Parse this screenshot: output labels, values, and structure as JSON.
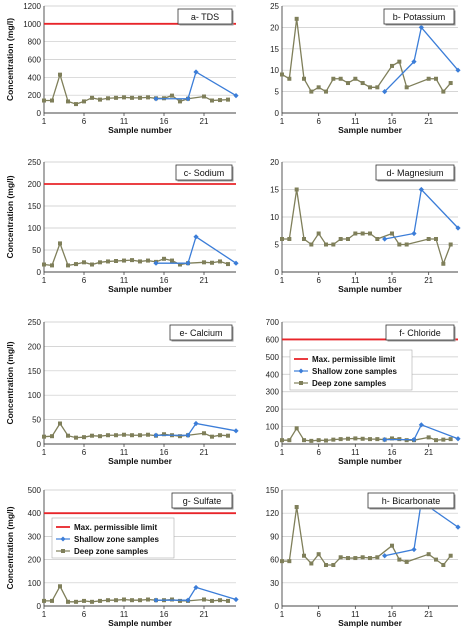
{
  "legend": {
    "limit_label": "Max. permissible limit",
    "shallow_label": "Shallow zone samples",
    "deep_label": "Deep zone samples"
  },
  "colors": {
    "limit": "#e8252a",
    "shallow": "#3b7dd8",
    "deep": "#7f7f5a",
    "grid": "#c8c8c8"
  },
  "chart_data": [
    {
      "type": "line",
      "title": "a- TDS",
      "xlabel": "Sample number",
      "ylabel": "Concentration (mg/l)",
      "ylim": [
        0,
        1200
      ],
      "yticks": [
        0,
        200,
        400,
        600,
        800,
        1000,
        1200
      ],
      "xticks": [
        1,
        6,
        11,
        16,
        21
      ],
      "xlim": [
        1,
        25
      ],
      "limit": 1000,
      "show_legend": false,
      "deep": {
        "x": [
          1,
          2,
          3,
          4,
          5,
          6,
          7,
          8,
          9,
          10,
          11,
          12,
          13,
          14,
          15,
          16,
          17,
          18,
          19,
          21,
          22,
          23,
          24
        ],
        "y": [
          140,
          140,
          430,
          130,
          100,
          130,
          170,
          150,
          165,
          170,
          175,
          170,
          170,
          175,
          165,
          165,
          195,
          130,
          160,
          185,
          140,
          145,
          150
        ]
      },
      "shallow": {
        "x": [
          15,
          19,
          20,
          25
        ],
        "y": [
          160,
          160,
          460,
          195
        ]
      }
    },
    {
      "type": "line",
      "title": "b- Potassium",
      "xlabel": "Sample number",
      "ylabel": "",
      "ylim": [
        0,
        25
      ],
      "yticks": [
        0,
        5,
        10,
        15,
        20,
        25
      ],
      "xticks": [
        1,
        6,
        11,
        16,
        21
      ],
      "xlim": [
        1,
        25
      ],
      "limit": null,
      "show_legend": false,
      "deep": {
        "x": [
          1,
          2,
          3,
          4,
          5,
          6,
          7,
          8,
          9,
          10,
          11,
          12,
          13,
          14,
          16,
          17,
          18,
          21,
          22,
          23,
          24
        ],
        "y": [
          9,
          8,
          22,
          8,
          5,
          6,
          5,
          8,
          8,
          7,
          8,
          7,
          6,
          6,
          11,
          12,
          6,
          8,
          8,
          5,
          7
        ]
      },
      "shallow": {
        "x": [
          15,
          19,
          20,
          25
        ],
        "y": [
          5,
          12,
          20,
          10
        ]
      }
    },
    {
      "type": "line",
      "title": "c- Sodium",
      "xlabel": "Sample number",
      "ylabel": "Concentration (mg/l)",
      "ylim": [
        0,
        250
      ],
      "yticks": [
        0,
        50,
        100,
        150,
        200,
        250
      ],
      "xticks": [
        1,
        6,
        11,
        16,
        21
      ],
      "xlim": [
        1,
        25
      ],
      "limit": 200,
      "show_legend": false,
      "deep": {
        "x": [
          1,
          2,
          3,
          4,
          5,
          6,
          7,
          8,
          9,
          10,
          11,
          12,
          13,
          14,
          15,
          16,
          17,
          18,
          19,
          21,
          22,
          23,
          24
        ],
        "y": [
          17,
          15,
          65,
          15,
          18,
          22,
          17,
          22,
          24,
          25,
          26,
          27,
          24,
          26,
          23,
          30,
          26,
          17,
          20,
          22,
          21,
          24,
          18
        ]
      },
      "shallow": {
        "x": [
          15,
          19,
          20,
          25
        ],
        "y": [
          20,
          20,
          80,
          20
        ]
      }
    },
    {
      "type": "line",
      "title": "d- Magnesium",
      "xlabel": "Sample number",
      "ylabel": "",
      "ylim": [
        0,
        20
      ],
      "yticks": [
        0,
        5,
        10,
        15,
        20
      ],
      "xticks": [
        1,
        6,
        11,
        16,
        21
      ],
      "xlim": [
        1,
        25
      ],
      "limit": null,
      "show_legend": false,
      "deep": {
        "x": [
          1,
          2,
          3,
          4,
          5,
          6,
          7,
          8,
          9,
          10,
          11,
          12,
          13,
          14,
          16,
          17,
          18,
          21,
          22,
          23,
          24
        ],
        "y": [
          6,
          6,
          15,
          6,
          5,
          7,
          5,
          5,
          6,
          6,
          7,
          7,
          7,
          6,
          7,
          5,
          5,
          6,
          6,
          1.5,
          5
        ]
      },
      "shallow": {
        "x": [
          15,
          19,
          20,
          25
        ],
        "y": [
          6,
          7,
          15,
          8
        ]
      }
    },
    {
      "type": "line",
      "title": "e- Calcium",
      "xlabel": "Sample number",
      "ylabel": "Concentration (mg/l)",
      "ylim": [
        0,
        250
      ],
      "yticks": [
        0,
        50,
        100,
        150,
        200,
        250
      ],
      "xticks": [
        1,
        6,
        11,
        16,
        21
      ],
      "xlim": [
        1,
        25
      ],
      "limit": null,
      "show_legend": false,
      "deep": {
        "x": [
          1,
          2,
          3,
          4,
          5,
          6,
          7,
          8,
          9,
          10,
          11,
          12,
          13,
          14,
          15,
          16,
          17,
          18,
          19,
          21,
          22,
          23,
          24
        ],
        "y": [
          15,
          16,
          42,
          17,
          13,
          14,
          17,
          16,
          18,
          18,
          19,
          18,
          18,
          19,
          17,
          20,
          18,
          16,
          18,
          22,
          15,
          18,
          17
        ]
      },
      "shallow": {
        "x": [
          15,
          19,
          20,
          25
        ],
        "y": [
          18,
          18,
          42,
          27
        ]
      }
    },
    {
      "type": "line",
      "title": "f- Chloride",
      "xlabel": "Sample number",
      "ylabel": "",
      "ylim": [
        0,
        700
      ],
      "yticks": [
        0,
        100,
        200,
        300,
        400,
        500,
        600,
        700
      ],
      "xticks": [
        1,
        6,
        11,
        16,
        21
      ],
      "xlim": [
        1,
        25
      ],
      "limit": 600,
      "show_legend": true,
      "deep": {
        "x": [
          1,
          2,
          3,
          4,
          5,
          6,
          7,
          8,
          9,
          10,
          11,
          12,
          13,
          14,
          15,
          16,
          17,
          18,
          19,
          21,
          22,
          23,
          24
        ],
        "y": [
          22,
          22,
          90,
          22,
          18,
          22,
          20,
          25,
          28,
          30,
          32,
          30,
          28,
          28,
          25,
          32,
          28,
          22,
          22,
          38,
          22,
          25,
          28
        ]
      },
      "shallow": {
        "x": [
          15,
          19,
          20,
          25
        ],
        "y": [
          25,
          25,
          110,
          30
        ]
      }
    },
    {
      "type": "line",
      "title": "g- Sulfate",
      "xlabel": "Sample number",
      "ylabel": "Concentration (mg/l)",
      "ylim": [
        0,
        500
      ],
      "yticks": [
        0,
        100,
        200,
        300,
        400,
        500
      ],
      "xticks": [
        1,
        6,
        11,
        16,
        21
      ],
      "xlim": [
        1,
        25
      ],
      "limit": 400,
      "show_legend": true,
      "deep": {
        "x": [
          1,
          2,
          3,
          4,
          5,
          6,
          7,
          8,
          9,
          10,
          11,
          12,
          13,
          14,
          15,
          16,
          17,
          18,
          19,
          21,
          22,
          23,
          24
        ],
        "y": [
          22,
          22,
          85,
          18,
          18,
          22,
          18,
          22,
          25,
          25,
          28,
          25,
          25,
          28,
          25,
          25,
          28,
          22,
          22,
          28,
          22,
          25,
          22
        ]
      },
      "shallow": {
        "x": [
          15,
          19,
          20,
          25
        ],
        "y": [
          25,
          25,
          80,
          28
        ]
      }
    },
    {
      "type": "line",
      "title": "h- Bicarbonate",
      "xlabel": "Sample number",
      "ylabel": "",
      "ylim": [
        0,
        150
      ],
      "yticks": [
        0,
        30,
        60,
        90,
        120,
        150
      ],
      "xticks": [
        1,
        6,
        11,
        16,
        21
      ],
      "xlim": [
        1,
        25
      ],
      "limit": null,
      "show_legend": false,
      "deep": {
        "x": [
          1,
          2,
          3,
          4,
          5,
          6,
          7,
          8,
          9,
          10,
          11,
          12,
          13,
          14,
          16,
          17,
          18,
          21,
          22,
          23,
          24
        ],
        "y": [
          58,
          58,
          128,
          65,
          55,
          67,
          53,
          53,
          63,
          62,
          62,
          63,
          62,
          63,
          78,
          60,
          57,
          67,
          60,
          53,
          65
        ]
      },
      "shallow": {
        "x": [
          15,
          19,
          20,
          25
        ],
        "y": [
          65,
          73,
          135,
          102
        ]
      }
    }
  ]
}
